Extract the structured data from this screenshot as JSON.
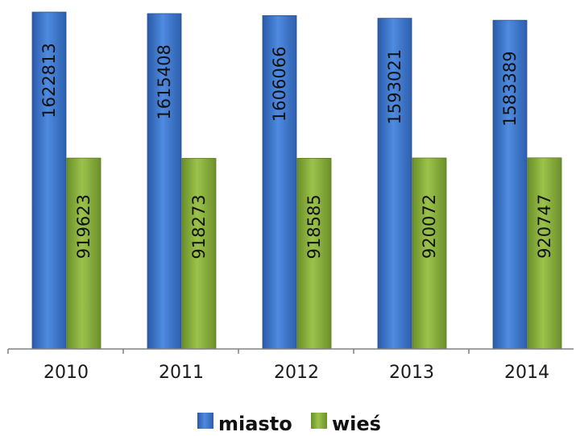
{
  "chart_data": {
    "type": "bar",
    "categories": [
      "2010",
      "2011",
      "2012",
      "2013",
      "2014"
    ],
    "series": [
      {
        "name": "miasto",
        "values": [
          1622813,
          1615408,
          1606066,
          1593021,
          1583389
        ],
        "color": "#3f78d0"
      },
      {
        "name": "wieś",
        "values": [
          919623,
          918273,
          918585,
          920072,
          920747
        ],
        "color": "#86ac3c"
      }
    ],
    "title": "",
    "xlabel": "",
    "ylabel": "",
    "grid": false,
    "legend_position": "bottom",
    "data_labels": "inside-bar-rotated"
  }
}
